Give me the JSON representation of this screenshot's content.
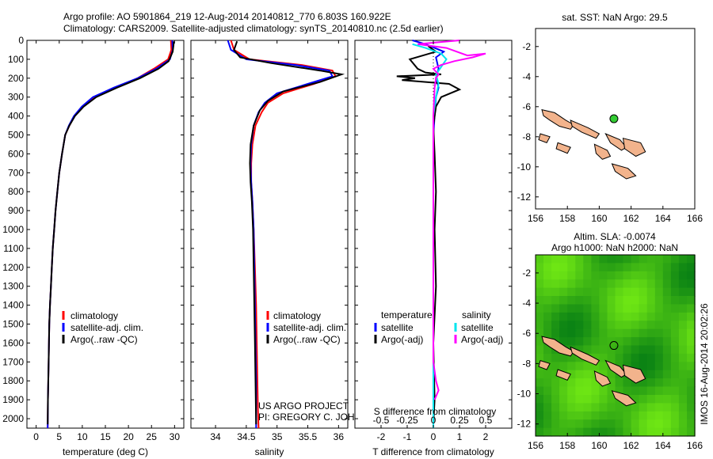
{
  "header": {
    "line1": "Argo profile: AO 5901864_219 12-Aug-2014 20140812_770 6.803S 160.922E",
    "line2": "Climatology: CARS2009. Satellite-adjusted climatology: synTS_20140810.nc (2.5d earlier)"
  },
  "colors": {
    "clim": "#ff0000",
    "sat": "#0000ff",
    "argo": "#000000",
    "sal_sat": "#00e5ee",
    "sal_argo": "#ff00ff",
    "island": "#f2b38c",
    "marker": "#33cc33"
  },
  "chart_data": [
    {
      "type": "line",
      "name": "temperature",
      "xlabel": "temperature (deg C)",
      "xlim": [
        -2,
        32
      ],
      "ylim": [
        2050,
        0
      ],
      "xticks": [
        0,
        5,
        10,
        15,
        20,
        25,
        30
      ],
      "yticks": [
        0,
        100,
        200,
        300,
        400,
        500,
        600,
        700,
        800,
        900,
        1000,
        1100,
        1200,
        1300,
        1400,
        1500,
        1600,
        1700,
        1800,
        1900,
        2000
      ],
      "legend": [
        "climatology",
        "satellite-adj. clim.",
        "Argo(..raw -QC)"
      ],
      "series": [
        {
          "name": "climatology",
          "color": "red",
          "x": [
            29.2,
            29.3,
            28.6,
            25.5,
            22,
            17.2,
            12.8,
            10.2,
            8.3,
            7.2,
            6.3,
            5.6,
            5.0,
            4.6,
            4.2,
            3.9,
            3.6,
            3.4,
            3.2,
            3.0,
            2.85,
            2.7,
            2.55,
            2.5
          ],
          "y": [
            0,
            50,
            100,
            150,
            200,
            250,
            300,
            350,
            400,
            450,
            500,
            600,
            700,
            800,
            900,
            1000,
            1100,
            1200,
            1300,
            1400,
            1500,
            1700,
            1900,
            2050
          ]
        },
        {
          "name": "satellite-adj. clim.",
          "color": "blue",
          "x": [
            29.5,
            29.6,
            29.0,
            26.0,
            22,
            16.8,
            12.3,
            9.9,
            8.2,
            7.1,
            6.3,
            5.6,
            5.0,
            4.6,
            4.2,
            3.9,
            3.6,
            3.4,
            3.2,
            3.0,
            2.85,
            2.7,
            2.55,
            2.5
          ],
          "y": [
            0,
            50,
            100,
            150,
            200,
            250,
            300,
            350,
            400,
            450,
            500,
            600,
            700,
            800,
            900,
            1000,
            1100,
            1200,
            1300,
            1400,
            1500,
            1700,
            1900,
            2050
          ]
        },
        {
          "name": "Argo(..raw -QC)",
          "color": "black",
          "x": [
            29.8,
            29.8,
            29.6,
            28.7,
            26.5,
            22.5,
            17.5,
            13,
            10.3,
            8.4,
            7.2,
            6.3,
            5.6,
            5.0,
            4.6,
            4.2,
            3.9,
            3.6,
            3.4,
            3.2,
            3.0,
            2.85,
            2.7,
            2.55,
            2.5
          ],
          "y": [
            5,
            20,
            60,
            110,
            150,
            200,
            250,
            300,
            350,
            400,
            450,
            500,
            600,
            700,
            800,
            900,
            1000,
            1100,
            1200,
            1300,
            1400,
            1500,
            1700,
            1900,
            2030
          ]
        }
      ]
    },
    {
      "type": "line",
      "name": "salinity",
      "xlabel": "salinity",
      "xlim": [
        33.6,
        36.15
      ],
      "ylim": [
        2050,
        0
      ],
      "xticks": [
        34,
        34.5,
        35,
        35.5,
        36
      ],
      "legend": [
        "climatology",
        "satellite-adj. clim.",
        "Argo(..raw -QC)"
      ],
      "annotation": [
        "US ARGO PROJECT",
        "PI: GREGORY C. JOHNSON"
      ],
      "series": [
        {
          "name": "climatology",
          "color": "red",
          "x": [
            34.25,
            34.3,
            34.55,
            35.4,
            35.9,
            35.95,
            35.6,
            35.1,
            34.85,
            34.75,
            34.65,
            34.6,
            34.58,
            34.58,
            34.6,
            34.62,
            34.64,
            34.66,
            34.67,
            34.68,
            34.69,
            34.7
          ],
          "y": [
            0,
            50,
            100,
            130,
            160,
            190,
            230,
            280,
            330,
            380,
            450,
            550,
            650,
            750,
            850,
            1000,
            1200,
            1400,
            1600,
            1800,
            1950,
            2050
          ]
        },
        {
          "name": "satellite-adj. clim.",
          "color": "blue",
          "x": [
            34.2,
            34.25,
            34.5,
            35.3,
            35.85,
            35.9,
            35.5,
            35.0,
            34.8,
            34.7,
            34.62,
            34.58,
            34.57,
            34.58,
            34.6,
            34.62,
            34.63,
            34.64,
            34.65,
            34.66,
            34.66,
            34.66
          ],
          "y": [
            0,
            50,
            100,
            130,
            160,
            190,
            230,
            280,
            330,
            380,
            450,
            550,
            650,
            750,
            850,
            1000,
            1200,
            1400,
            1600,
            1800,
            1950,
            2050
          ]
        },
        {
          "name": "Argo(..raw -QC)",
          "color": "black",
          "x": [
            34.35,
            34.3,
            34.4,
            34.9,
            35.7,
            36.05,
            35.7,
            35.1,
            34.85,
            34.72,
            34.62,
            34.57,
            34.56,
            34.57,
            34.59,
            34.61,
            34.62,
            34.63,
            34.64,
            34.65,
            34.66
          ],
          "y": [
            5,
            50,
            90,
            120,
            160,
            180,
            220,
            270,
            320,
            370,
            450,
            550,
            650,
            750,
            850,
            1000,
            1200,
            1400,
            1600,
            1800,
            2030
          ]
        }
      ]
    },
    {
      "type": "line",
      "name": "difference",
      "xlabel": "T difference from climatology",
      "xlabel_top": "S difference from climatology",
      "xlim": [
        -3,
        3
      ],
      "ylim": [
        2050,
        0
      ],
      "xticks_T": [
        -2,
        -1,
        0,
        1,
        2
      ],
      "xticks_S_labels": [
        "-0.5",
        "-0.25",
        "0",
        "0.25",
        "0.5"
      ],
      "legend_headers": [
        "temperature",
        "salinity"
      ],
      "legend": [
        "satellite",
        "Argo(-adj)",
        "satellite",
        "Argo(-adj)"
      ],
      "series": [
        {
          "name": "T satellite",
          "color": "blue",
          "x": [
            -0.8,
            -0.3,
            0.4,
            0.1,
            0.2,
            0.1,
            0.2,
            0.1,
            0.05,
            0,
            0,
            0,
            0,
            0,
            0,
            0,
            0,
            0,
            0,
            0,
            0
          ],
          "y": [
            0,
            20,
            60,
            90,
            150,
            200,
            250,
            300,
            400,
            500,
            600,
            800,
            1000,
            1200,
            1400,
            1600,
            1800,
            1900,
            2000,
            2030,
            2050
          ]
        },
        {
          "name": "T Argo(-adj)",
          "color": "black",
          "x": [
            -0.2,
            0.1,
            -0.9,
            -0.6,
            -0.3,
            0.3,
            -1.4,
            -0.7,
            -1.2,
            0.6,
            1.0,
            0.3,
            0.1,
            0,
            0.05,
            0.1,
            0.05,
            0.1,
            0,
            0.05,
            0
          ],
          "y": [
            30,
            60,
            100,
            150,
            170,
            180,
            190,
            200,
            210,
            230,
            260,
            300,
            350,
            450,
            600,
            800,
            1000,
            1300,
            1600,
            1900,
            2030
          ]
        },
        {
          "name": "S satellite",
          "color": "cyan",
          "x": [
            -0.8,
            -0.3,
            0.3,
            0.5,
            0.3,
            0.1,
            0.2,
            0.1,
            0,
            0,
            0,
            0,
            0,
            0,
            0,
            0,
            0,
            0,
            0
          ],
          "y": [
            20,
            40,
            70,
            100,
            140,
            180,
            230,
            300,
            400,
            500,
            700,
            900,
            1100,
            1300,
            1500,
            1700,
            1900,
            2000,
            2050
          ]
        },
        {
          "name": "S Argo(-adj)",
          "color": "magenta",
          "x": [
            1.0,
            -0.6,
            0.5,
            1.3,
            2.0,
            1.5,
            0.8,
            0.3,
            0,
            0.2,
            0.1,
            0.05,
            0,
            0,
            0,
            0,
            0,
            0,
            0,
            0,
            0.1,
            0.2,
            0.05
          ],
          "y": [
            0,
            20,
            40,
            80,
            70,
            90,
            110,
            130,
            150,
            180,
            200,
            250,
            400,
            600,
            800,
            1000,
            1200,
            1400,
            1600,
            1700,
            1800,
            1850,
            1900
          ]
        }
      ]
    },
    {
      "type": "heatmap",
      "name": "sst_map",
      "title": "sat. SST: NaN Argo: 29.5",
      "xlim": [
        156,
        166
      ],
      "ylim": [
        -12.8,
        -0.8
      ],
      "xticks": [
        156,
        158,
        160,
        162,
        164,
        166
      ],
      "yticks": [
        -2,
        -4,
        -6,
        -8,
        -10,
        -12
      ],
      "marker": {
        "lon": 160.922,
        "lat": -6.803
      }
    },
    {
      "type": "heatmap",
      "name": "sla_map",
      "title": "Altim. SLA: -0.0074",
      "subtitle": "Argo h1000: NaN h2000: NaN",
      "xlim": [
        156,
        166
      ],
      "ylim": [
        -12.8,
        -0.8
      ],
      "xticks": [
        156,
        158,
        160,
        162,
        164,
        166
      ],
      "yticks": [
        -2,
        -4,
        -6,
        -8,
        -10,
        -12
      ],
      "marker": {
        "lon": 160.922,
        "lat": -6.803
      }
    }
  ],
  "footer": "IMOS 16-Aug-2014 20:02:26"
}
